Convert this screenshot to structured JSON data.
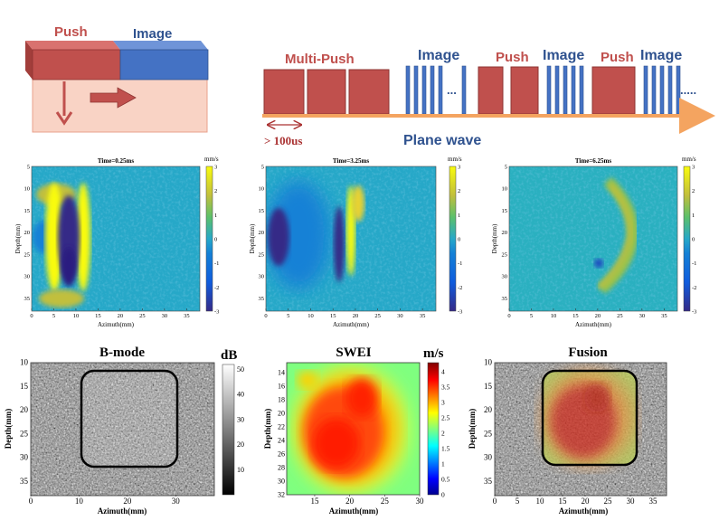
{
  "schematic": {
    "push_label": "Push",
    "image_label": "Image",
    "colors": {
      "push": "#c0504d",
      "image": "#4472c4",
      "tissue": "#f9d3c5"
    }
  },
  "sequence": {
    "multi_push_label": "Multi-Push",
    "image_label": "Image",
    "push_label": "Push",
    "ellipsis": "...",
    "trail": ".....",
    "duration_label": "> 100us",
    "plane_wave_label": "Plane wave",
    "arrow_color": "#f4a460"
  },
  "velocity_maps": {
    "colorbar_unit": "mm/s",
    "colorbar_ticks": [
      "3",
      "2",
      "1",
      "0",
      "-1",
      "-2",
      "-3"
    ],
    "ylabel": "Depth(mm)",
    "xlabel": "Azimuth(mm)",
    "xticks": [
      "0",
      "5",
      "10",
      "15",
      "20",
      "25",
      "30",
      "35"
    ],
    "yticks": [
      "5",
      "10",
      "15",
      "20",
      "25",
      "30",
      "35"
    ],
    "panels": [
      {
        "title": "Time=0.25ms"
      },
      {
        "title": "Time=3.25ms"
      },
      {
        "title": "Time=6.25ms"
      }
    ]
  },
  "bmode": {
    "title": "B-mode",
    "unit": "dB",
    "colorbar_ticks": [
      "50",
      "40",
      "30",
      "20",
      "10"
    ],
    "ylabel": "Depth(mm)",
    "xlabel": "Azimuth(mm)",
    "xticks": [
      "0",
      "10",
      "20",
      "30"
    ],
    "yticks": [
      "10",
      "15",
      "20",
      "25",
      "30",
      "35"
    ]
  },
  "swei": {
    "title": "SWEI",
    "unit": "m/s",
    "colorbar_ticks": [
      "4",
      "3.5",
      "3",
      "2.5",
      "2",
      "1.5",
      "1",
      "0.5",
      "0"
    ],
    "ylabel": "Depth(mm)",
    "xlabel": "Azimuth(mm)",
    "xticks": [
      "15",
      "20",
      "25",
      "30"
    ],
    "yticks": [
      "14",
      "16",
      "18",
      "20",
      "22",
      "24",
      "26",
      "28",
      "30",
      "32"
    ]
  },
  "fusion": {
    "title": "Fusion",
    "ylabel": "Depth(mm)",
    "xlabel": "Azimuth(mm)",
    "xticks": [
      "0",
      "5",
      "10",
      "15",
      "20",
      "25",
      "30",
      "35"
    ],
    "yticks": [
      "10",
      "15",
      "20",
      "25",
      "30",
      "35"
    ]
  }
}
